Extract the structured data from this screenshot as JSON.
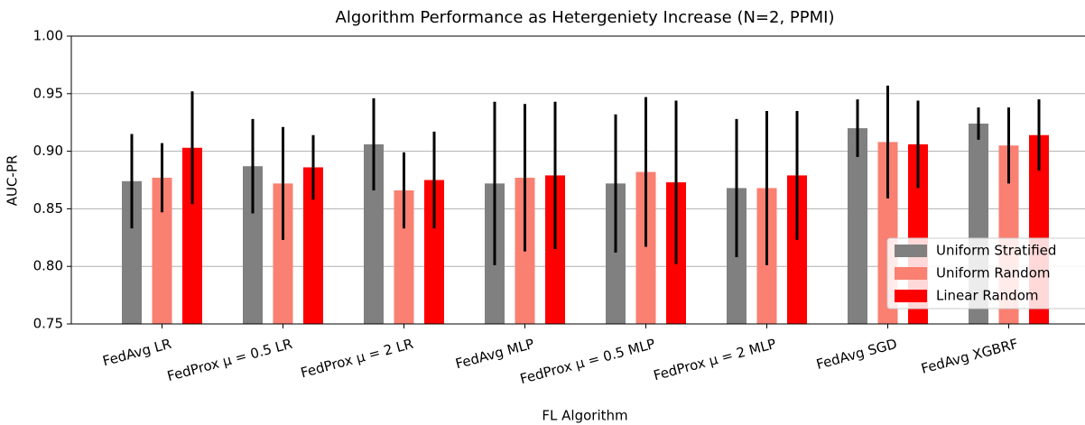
{
  "chart_data": {
    "type": "bar",
    "title": "Algorithm Performance as Hetergeniety Increase (N=2, PPMI)",
    "x_label": "FL Algorithm",
    "y_label": "AUC-PR",
    "categories": [
      "FedAvg LR",
      "FedProx μ = 0.5 LR",
      "FedProx μ = 2 LR",
      "FedAvg MLP",
      "FedProx μ = 0.5 MLP",
      "FedProx μ = 2 MLP",
      "FedAvg SGD",
      "FedAvg XGBRF"
    ],
    "series": [
      {
        "name": "Uniform Stratified",
        "color": "#808080",
        "values": [
          0.874,
          0.887,
          0.906,
          0.872,
          0.872,
          0.868,
          0.92,
          0.924
        ],
        "errors": [
          0.041,
          0.041,
          0.04,
          0.071,
          0.06,
          0.06,
          0.025,
          0.014
        ]
      },
      {
        "name": "Uniform Random",
        "color": "#fa8072",
        "values": [
          0.877,
          0.872,
          0.866,
          0.877,
          0.882,
          0.868,
          0.908,
          0.905
        ],
        "errors": [
          0.03,
          0.049,
          0.033,
          0.064,
          0.065,
          0.067,
          0.049,
          0.033
        ]
      },
      {
        "name": "Linear Random",
        "color": "#ff0000",
        "values": [
          0.903,
          0.886,
          0.875,
          0.879,
          0.873,
          0.879,
          0.906,
          0.914
        ],
        "errors": [
          0.049,
          0.028,
          0.042,
          0.064,
          0.071,
          0.056,
          0.038,
          0.031
        ]
      }
    ],
    "ylim": [
      0.75,
      1.0
    ],
    "yticks": [
      {
        "value": 0.75,
        "label": "0.75"
      },
      {
        "value": 0.8,
        "label": "0.80"
      },
      {
        "value": 0.85,
        "label": "0.85"
      },
      {
        "value": 0.9,
        "label": "0.90"
      },
      {
        "value": 0.95,
        "label": "0.95"
      },
      {
        "value": 1.0,
        "label": "1.00"
      }
    ],
    "grid": true,
    "legend": "lower right"
  }
}
